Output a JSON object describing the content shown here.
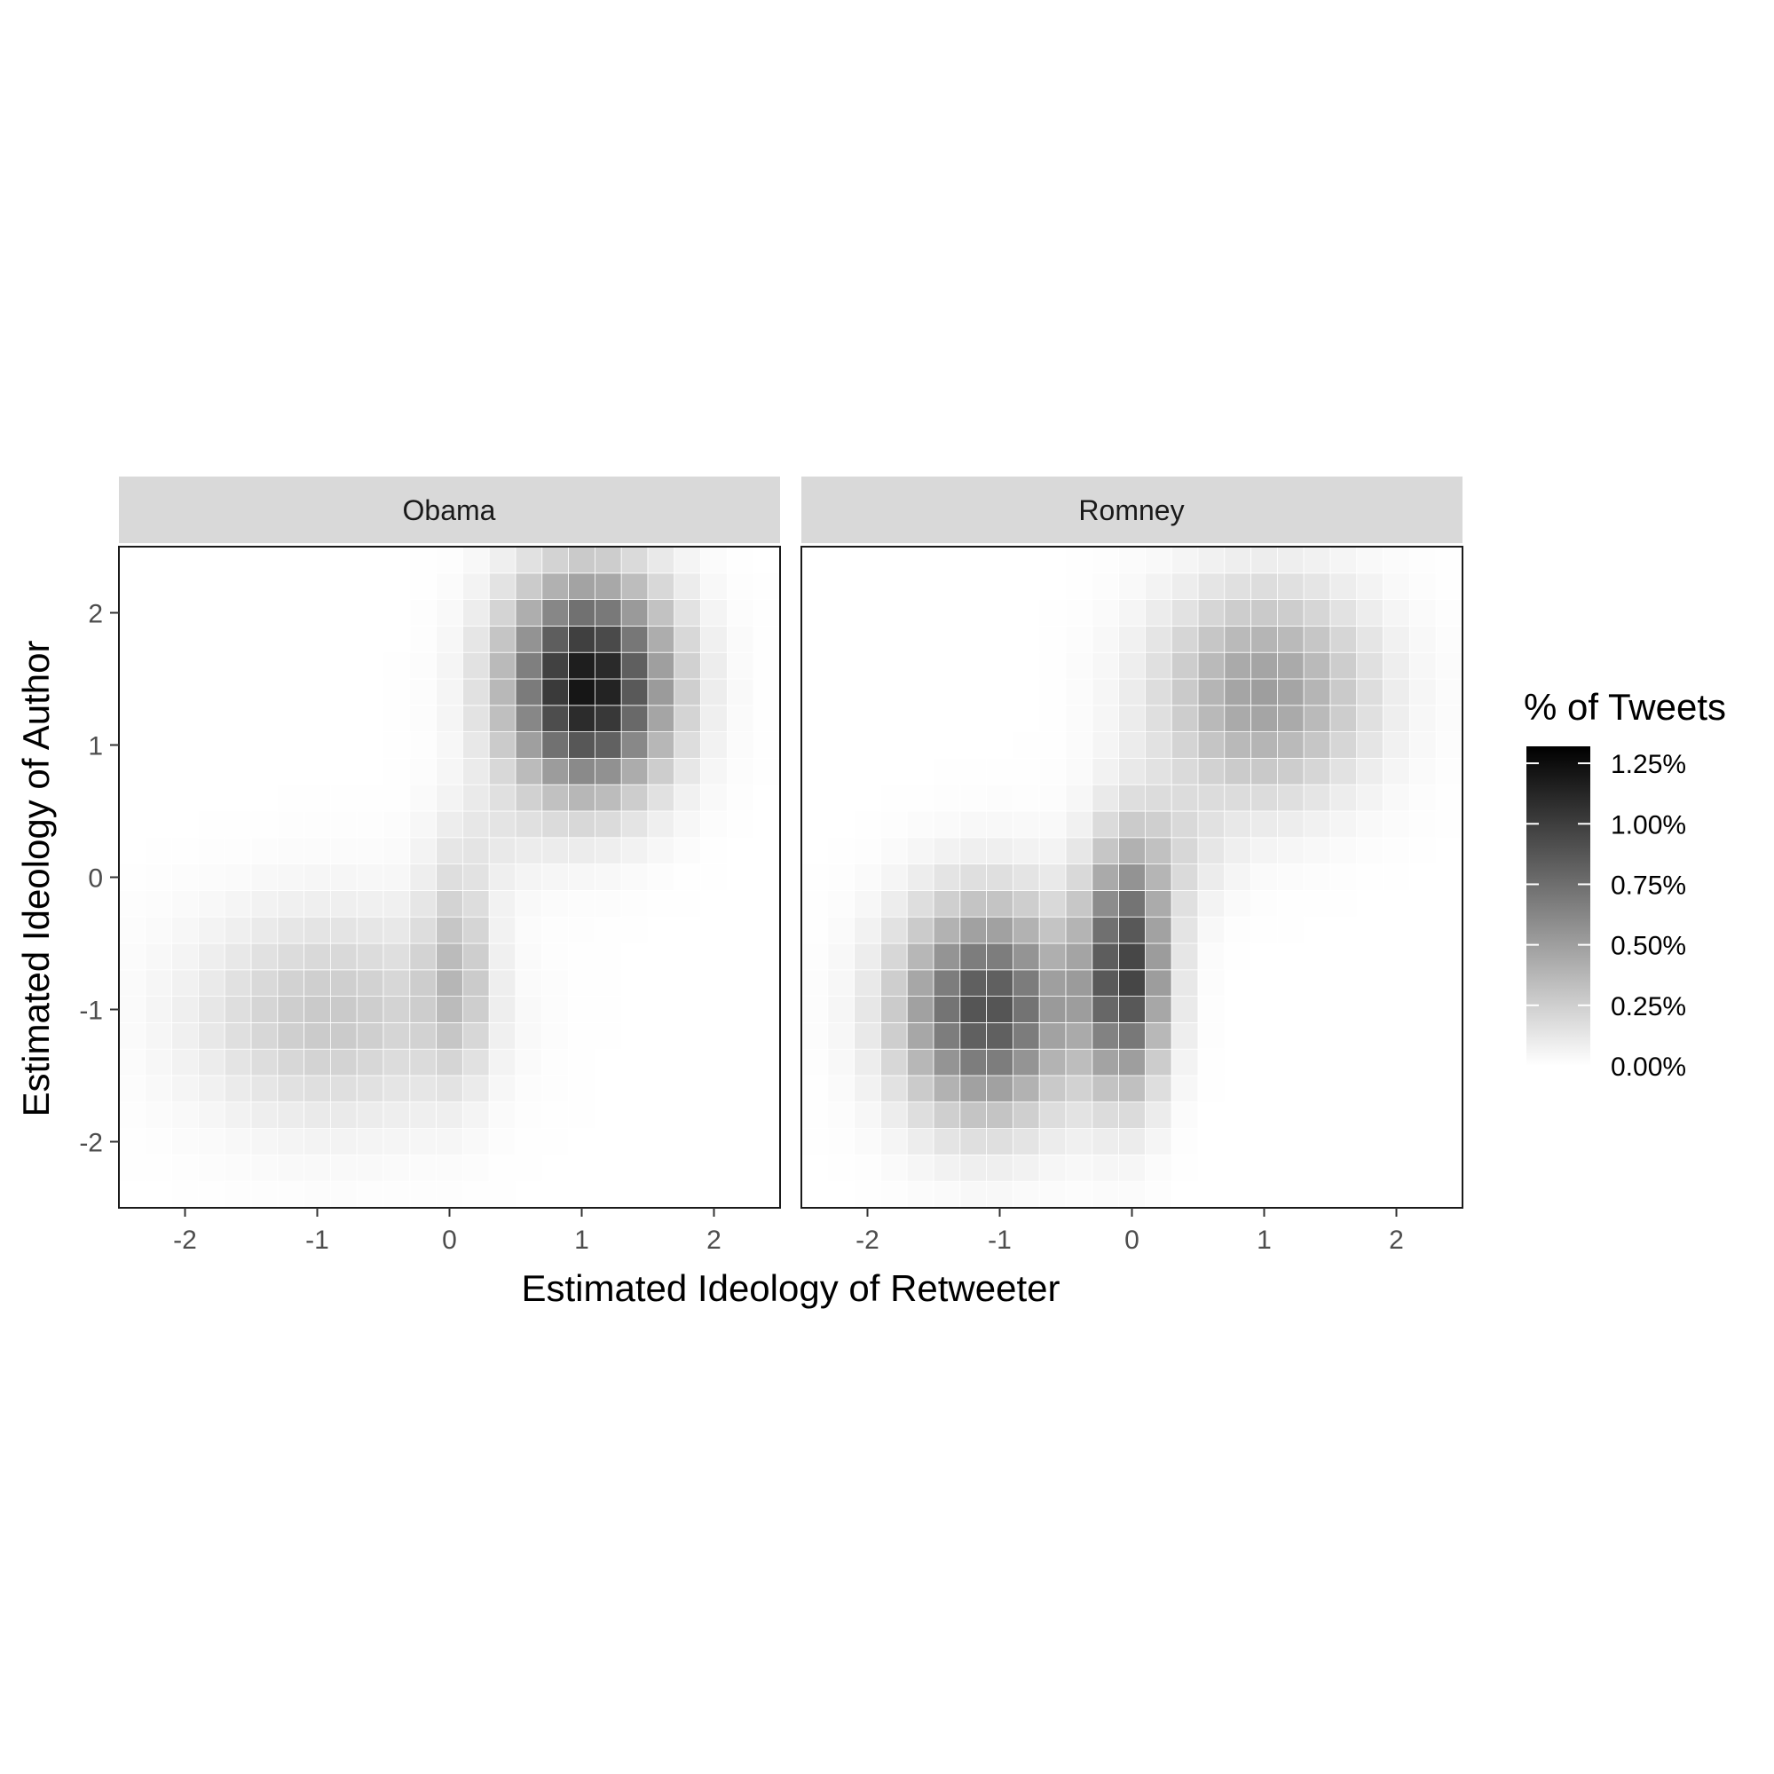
{
  "chart_data": {
    "type": "heatmap",
    "xlabel": "Estimated Ideology of Retweeter",
    "ylabel": "Estimated Ideology of Author",
    "xlim": [
      -2.5,
      2.5
    ],
    "ylim": [
      -2.5,
      2.5
    ],
    "x_ticks": [
      -2,
      -1,
      0,
      1,
      2
    ],
    "y_ticks": [
      -2,
      -1,
      0,
      1,
      2
    ],
    "x_tick_labels": [
      "-2",
      "-1",
      "0",
      "1",
      "2"
    ],
    "y_tick_labels": [
      "-2",
      "-1",
      "0",
      "1",
      "2"
    ],
    "bins": {
      "count": 25,
      "start": -2.5,
      "width": 0.2
    },
    "legend": {
      "title": "% of Tweets",
      "breaks": [
        1.25,
        1.0,
        0.75,
        0.5,
        0.25,
        0.0
      ],
      "labels": [
        "1.25%",
        "1.00%",
        "0.75%",
        "0.50%",
        "0.25%",
        "0.00%"
      ],
      "limits": [
        0,
        1.32
      ],
      "low_color": "#ffffff",
      "high_color": "#000000",
      "placement": "right"
    },
    "panels": [
      {
        "name": "Obama",
        "components": [
          {
            "cx": 1.05,
            "cy": 1.45,
            "sx": 0.42,
            "sy": 0.55,
            "amp": 1.22
          },
          {
            "cx": 0.05,
            "cy": -0.7,
            "sx": 0.18,
            "sy": 0.55,
            "amp": 0.28
          },
          {
            "cx": -0.9,
            "cy": -1.05,
            "sx": 0.7,
            "sy": 0.55,
            "amp": 0.28
          },
          {
            "cx": 0.3,
            "cy": 0.3,
            "sx": 0.3,
            "sy": 0.3,
            "amp": 0.08
          }
        ]
      },
      {
        "name": "Romney",
        "components": [
          {
            "cx": -1.1,
            "cy": -1.0,
            "sx": 0.45,
            "sy": 0.55,
            "amp": 0.9
          },
          {
            "cx": -0.05,
            "cy": -0.7,
            "sx": 0.22,
            "sy": 0.6,
            "amp": 0.95
          },
          {
            "cx": 1.0,
            "cy": 1.4,
            "sx": 0.55,
            "sy": 0.55,
            "amp": 0.5
          },
          {
            "cx": 0.3,
            "cy": 0.2,
            "sx": 0.3,
            "sy": 0.35,
            "amp": 0.15
          }
        ]
      }
    ]
  }
}
